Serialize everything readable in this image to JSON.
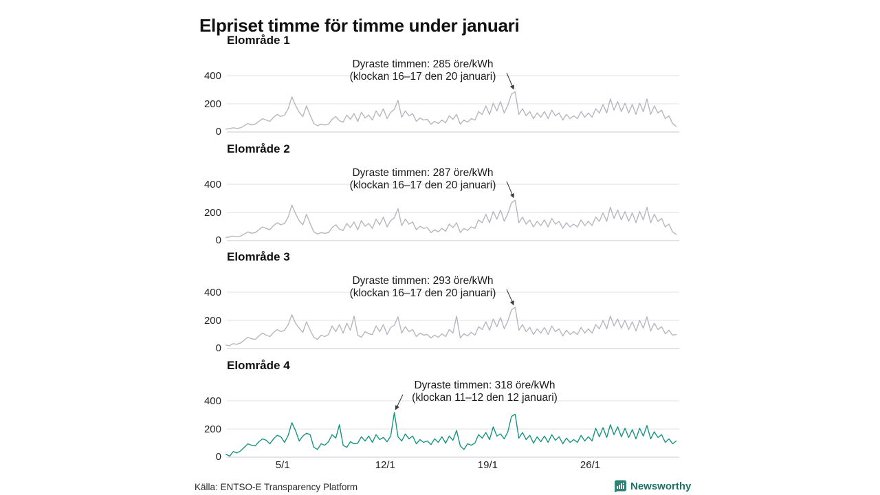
{
  "title": "Elpriset timme för timme under januari",
  "source": "Källa: ENTSO-E Transparency Platform",
  "brand": "Newsworthy",
  "colors": {
    "line_gray": "#b6b6bf",
    "line_teal": "#17947f",
    "grid": "#dfdfe4",
    "grid_zero": "#c9c9d0",
    "arrow": "#3c3c3c",
    "brand_teal": "#1d7265",
    "logo_teal": "#2b8276"
  },
  "x_axis": {
    "ticks": [
      {
        "label": "5/1",
        "day": 4
      },
      {
        "label": "12/1",
        "day": 11
      },
      {
        "label": "19/1",
        "day": 18
      },
      {
        "label": "26/1",
        "day": 25
      }
    ]
  },
  "chart_data": [
    {
      "type": "line",
      "title": "Elområde 1",
      "unit": "öre/kWh",
      "x_domain": "januari dag 1–31, timvärden (här samplade var 6:e timme)",
      "points_per_day": 4,
      "ylim": [
        0,
        450
      ],
      "y_ticks": [
        "400",
        "200",
        "0"
      ],
      "color": "#b6b6bf",
      "annotation": {
        "line1": "Dyraste timmen: 285 öre/kWh",
        "line2": "(klockan 16–17 den 20 januari)",
        "peak_value": 285,
        "peak_hour": "16–17",
        "peak_day": 20
      },
      "values": [
        20,
        25,
        30,
        25,
        30,
        45,
        60,
        50,
        55,
        75,
        95,
        85,
        75,
        105,
        125,
        110,
        120,
        165,
        250,
        190,
        140,
        110,
        185,
        120,
        60,
        45,
        55,
        50,
        55,
        90,
        110,
        80,
        70,
        120,
        90,
        130,
        75,
        140,
        100,
        120,
        85,
        150,
        110,
        165,
        95,
        140,
        160,
        225,
        105,
        150,
        115,
        130,
        75,
        100,
        85,
        90,
        55,
        75,
        60,
        85,
        65,
        115,
        90,
        125,
        55,
        85,
        70,
        95,
        85,
        145,
        125,
        185,
        125,
        205,
        150,
        215,
        135,
        190,
        270,
        285,
        125,
        165,
        115,
        145,
        95,
        135,
        105,
        145,
        95,
        155,
        115,
        135,
        85,
        125,
        95,
        115,
        95,
        145,
        105,
        135,
        105,
        165,
        135,
        195,
        135,
        235,
        155,
        215,
        145,
        205,
        135,
        195,
        125,
        205,
        145,
        235,
        125,
        185,
        135,
        155,
        95,
        115,
        60,
        40
      ]
    },
    {
      "type": "line",
      "title": "Elområde 2",
      "unit": "öre/kWh",
      "x_domain": "januari dag 1–31, timvärden (här samplade var 6:e timme)",
      "points_per_day": 4,
      "ylim": [
        0,
        450
      ],
      "y_ticks": [
        "400",
        "200",
        "0"
      ],
      "color": "#b6b6bf",
      "annotation": {
        "line1": "Dyraste timmen: 287 öre/kWh",
        "line2": "(klockan 16–17 den 20 januari)",
        "peak_value": 287,
        "peak_hour": "16–17",
        "peak_day": 20
      },
      "values": [
        22,
        27,
        32,
        27,
        32,
        47,
        62,
        52,
        57,
        77,
        97,
        87,
        77,
        107,
        127,
        112,
        122,
        167,
        252,
        192,
        142,
        112,
        187,
        122,
        62,
        47,
        57,
        52,
        57,
        92,
        112,
        82,
        72,
        122,
        92,
        132,
        77,
        142,
        102,
        122,
        87,
        152,
        112,
        167,
        97,
        142,
        162,
        227,
        107,
        152,
        117,
        132,
        77,
        102,
        87,
        92,
        57,
        77,
        62,
        87,
        67,
        117,
        92,
        127,
        57,
        87,
        72,
        97,
        87,
        147,
        127,
        187,
        127,
        207,
        152,
        217,
        137,
        192,
        268,
        287,
        127,
        167,
        117,
        147,
        97,
        137,
        107,
        147,
        97,
        157,
        117,
        137,
        87,
        127,
        97,
        117,
        97,
        147,
        107,
        137,
        107,
        167,
        137,
        197,
        137,
        237,
        157,
        217,
        147,
        207,
        137,
        197,
        127,
        207,
        147,
        237,
        127,
        187,
        137,
        157,
        97,
        117,
        62,
        45
      ]
    },
    {
      "type": "line",
      "title": "Elområde 3",
      "unit": "öre/kWh",
      "x_domain": "januari dag 1–31, timvärden (här samplade var 6:e timme)",
      "points_per_day": 4,
      "ylim": [
        0,
        450
      ],
      "y_ticks": [
        "400",
        "200",
        "0"
      ],
      "color": "#b6b6bf",
      "annotation": {
        "line1": "Dyraste timmen: 293 öre/kWh",
        "line2": "(klockan 16–17 den 20 januari)",
        "peak_value": 293,
        "peak_hour": "16–17",
        "peak_day": 20
      },
      "values": [
        25,
        20,
        35,
        30,
        40,
        60,
        80,
        70,
        65,
        90,
        110,
        95,
        85,
        115,
        135,
        120,
        130,
        170,
        240,
        180,
        145,
        115,
        190,
        130,
        80,
        65,
        95,
        85,
        100,
        160,
        120,
        170,
        110,
        180,
        130,
        230,
        95,
        80,
        120,
        105,
        100,
        160,
        120,
        170,
        100,
        150,
        165,
        225,
        110,
        155,
        120,
        135,
        85,
        110,
        95,
        100,
        75,
        95,
        80,
        105,
        85,
        135,
        110,
        230,
        75,
        105,
        90,
        115,
        95,
        155,
        135,
        190,
        130,
        210,
        155,
        220,
        140,
        195,
        275,
        293,
        130,
        170,
        120,
        150,
        100,
        140,
        110,
        150,
        100,
        160,
        120,
        140,
        90,
        130,
        100,
        120,
        100,
        150,
        110,
        140,
        110,
        170,
        140,
        200,
        140,
        230,
        160,
        210,
        145,
        200,
        135,
        190,
        125,
        200,
        145,
        225,
        125,
        180,
        135,
        155,
        105,
        130,
        95,
        100
      ]
    },
    {
      "type": "line",
      "title": "Elområde 4",
      "unit": "öre/kWh",
      "x_domain": "januari dag 1–31, timvärden (här samplade var 6:e timme)",
      "points_per_day": 4,
      "ylim": [
        0,
        450
      ],
      "y_ticks": [
        "400",
        "200",
        "0"
      ],
      "color": "#17947f",
      "annotation": {
        "line1": "Dyraste timmen: 318 öre/kWh",
        "line2": "(klockan 11–12 den 12 januari)",
        "peak_value": 318,
        "peak_hour": "11–12",
        "peak_day": 12
      },
      "values": [
        20,
        8,
        40,
        30,
        45,
        70,
        95,
        85,
        80,
        110,
        130,
        120,
        95,
        130,
        155,
        145,
        105,
        155,
        245,
        190,
        115,
        150,
        170,
        160,
        70,
        55,
        95,
        85,
        110,
        160,
        135,
        230,
        85,
        70,
        110,
        95,
        100,
        145,
        115,
        150,
        105,
        160,
        125,
        140,
        110,
        150,
        318,
        145,
        115,
        165,
        130,
        150,
        95,
        125,
        105,
        115,
        90,
        130,
        105,
        145,
        100,
        150,
        120,
        190,
        80,
        55,
        95,
        85,
        100,
        160,
        135,
        175,
        125,
        215,
        150,
        165,
        130,
        180,
        290,
        305,
        135,
        175,
        125,
        155,
        100,
        145,
        110,
        150,
        105,
        160,
        120,
        145,
        95,
        135,
        105,
        125,
        105,
        155,
        115,
        145,
        115,
        205,
        145,
        210,
        140,
        230,
        160,
        215,
        145,
        205,
        140,
        195,
        130,
        205,
        150,
        225,
        130,
        180,
        140,
        160,
        105,
        130,
        95,
        115
      ]
    }
  ]
}
